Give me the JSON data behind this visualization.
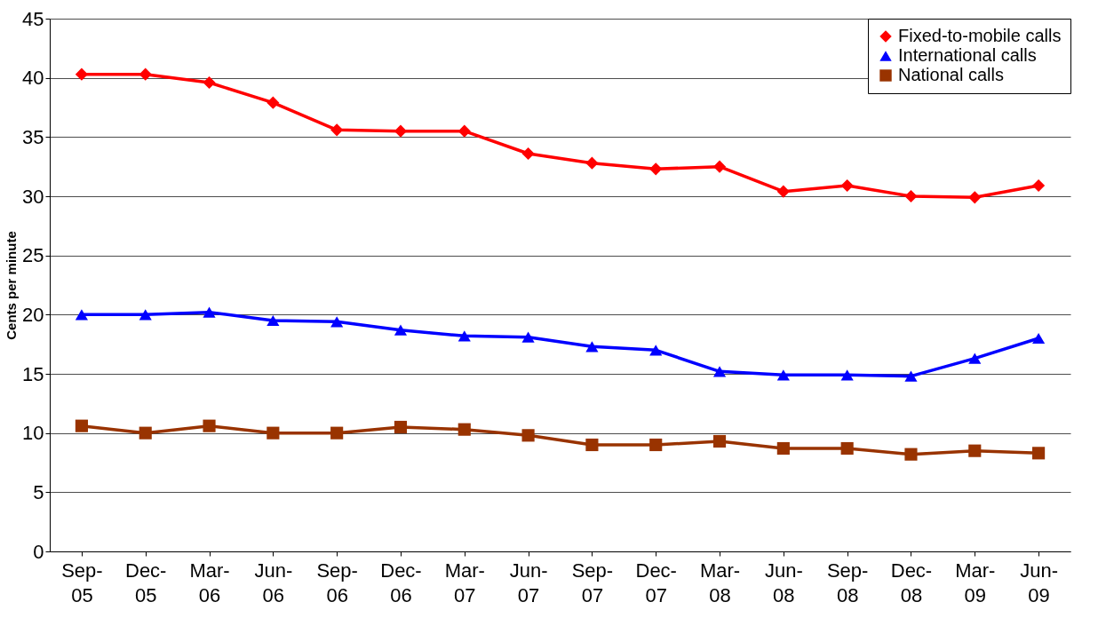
{
  "chart_data": {
    "type": "line",
    "ylabel": "Cents per minute",
    "categories": [
      "Sep-05",
      "Dec-05",
      "Mar-06",
      "Jun-06",
      "Sep-06",
      "Dec-06",
      "Mar-07",
      "Jun-07",
      "Sep-07",
      "Dec-07",
      "Mar-08",
      "Jun-08",
      "Sep-08",
      "Dec-08",
      "Mar-09",
      "Jun-09"
    ],
    "ylim": [
      0,
      45
    ],
    "yticks": [
      0,
      5,
      10,
      15,
      20,
      25,
      30,
      35,
      40,
      45
    ],
    "grid": "y",
    "legend": "top right",
    "line_style": "solid",
    "series": [
      {
        "name": "Fixed-to-mobile calls",
        "color": "#ff0000",
        "marker": "diamond",
        "values": [
          40.3,
          40.3,
          39.6,
          37.9,
          35.6,
          35.5,
          35.5,
          33.6,
          32.8,
          32.3,
          32.5,
          30.4,
          30.9,
          30.0,
          29.9,
          30.9
        ]
      },
      {
        "name": "International calls",
        "color": "#0000ff",
        "marker": "triangle",
        "values": [
          20.0,
          20.0,
          20.2,
          19.5,
          19.4,
          18.7,
          18.2,
          18.1,
          17.3,
          17.0,
          15.2,
          14.9,
          14.9,
          14.8,
          16.3,
          18.0
        ]
      },
      {
        "name": "National calls",
        "color": "#993300",
        "marker": "square",
        "values": [
          10.6,
          10.0,
          10.6,
          10.0,
          10.0,
          10.5,
          10.3,
          9.8,
          9.0,
          9.0,
          9.3,
          8.7,
          8.7,
          8.2,
          8.5,
          8.3
        ]
      }
    ]
  }
}
